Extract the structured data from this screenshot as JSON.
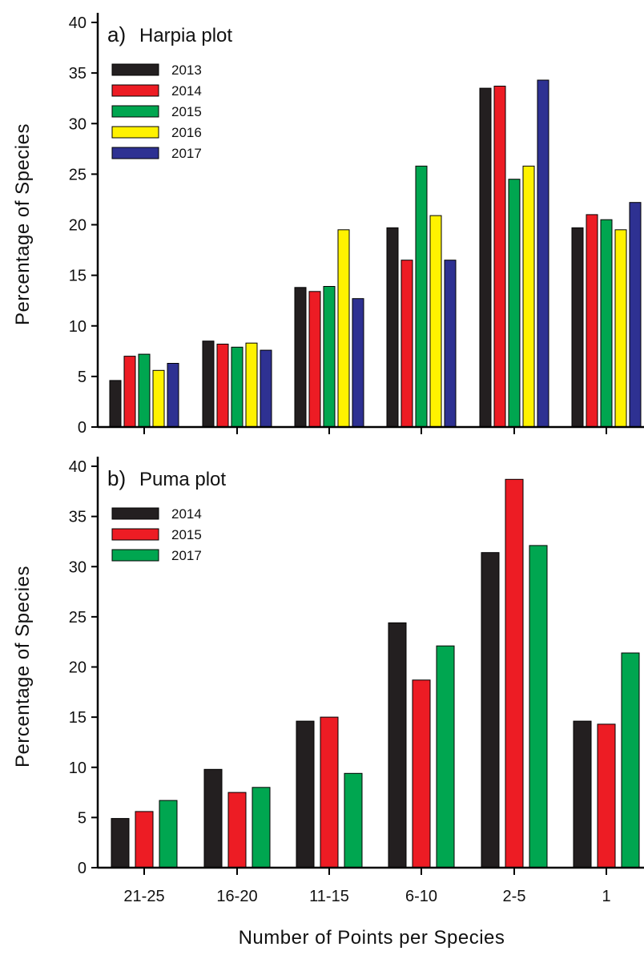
{
  "xlabel": "Number of Points per Species",
  "colors": {
    "black": "#231f20",
    "red": "#ed1c24",
    "green": "#00a650",
    "yellow": "#fff200",
    "blue": "#2e3192"
  },
  "chart_data": [
    {
      "type": "bar",
      "panel_letter": "a)",
      "title": "Harpia plot",
      "ylabel": "Percentage of Species",
      "ylim": [
        0,
        40
      ],
      "yticks": [
        0,
        5,
        10,
        15,
        20,
        25,
        30,
        35,
        40
      ],
      "categories": [
        "21-25",
        "16-20",
        "11-15",
        "6-10",
        "2-5",
        "1"
      ],
      "show_category_labels": false,
      "legend_position": "top-left",
      "grid": false,
      "series": [
        {
          "name": "2013",
          "color": "#231f20",
          "values": [
            4.6,
            8.5,
            13.8,
            19.7,
            33.5,
            19.7
          ]
        },
        {
          "name": "2014",
          "color": "#ed1c24",
          "values": [
            7.0,
            8.2,
            13.4,
            16.5,
            33.7,
            21.0
          ]
        },
        {
          "name": "2015",
          "color": "#00a650",
          "values": [
            7.2,
            7.9,
            13.9,
            25.8,
            24.5,
            20.5
          ]
        },
        {
          "name": "2016",
          "color": "#fff200",
          "values": [
            5.6,
            8.3,
            19.5,
            20.9,
            25.8,
            19.5
          ]
        },
        {
          "name": "2017",
          "color": "#2e3192",
          "values": [
            6.3,
            7.6,
            12.7,
            16.5,
            34.3,
            22.2
          ]
        }
      ]
    },
    {
      "type": "bar",
      "panel_letter": "b)",
      "title": "Puma plot",
      "ylabel": "Percentage of Species",
      "ylim": [
        0,
        40
      ],
      "yticks": [
        0,
        5,
        10,
        15,
        20,
        25,
        30,
        35,
        40
      ],
      "categories": [
        "21-25",
        "16-20",
        "11-15",
        "6-10",
        "2-5",
        "1"
      ],
      "show_category_labels": true,
      "legend_position": "top-left",
      "grid": false,
      "series": [
        {
          "name": "2014",
          "color": "#231f20",
          "values": [
            4.9,
            9.8,
            14.6,
            24.4,
            31.4,
            14.6
          ]
        },
        {
          "name": "2015",
          "color": "#ed1c24",
          "values": [
            5.6,
            7.5,
            15.0,
            18.7,
            38.7,
            14.3
          ]
        },
        {
          "name": "2017",
          "color": "#00a650",
          "values": [
            6.7,
            8.0,
            9.4,
            22.1,
            32.1,
            21.4
          ]
        }
      ]
    }
  ]
}
